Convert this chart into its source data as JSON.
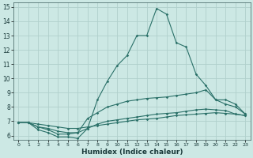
{
  "xlabel": "Humidex (Indice chaleur)",
  "bg_color": "#cce8e4",
  "grid_color": "#b0d0cc",
  "line_color": "#2a7068",
  "xlim": [
    -0.5,
    23.5
  ],
  "ylim": [
    5.7,
    15.3
  ],
  "yticks": [
    6,
    7,
    8,
    9,
    10,
    11,
    12,
    13,
    14,
    15
  ],
  "xticks": [
    0,
    1,
    2,
    3,
    4,
    5,
    6,
    7,
    8,
    9,
    10,
    11,
    12,
    13,
    14,
    15,
    16,
    17,
    18,
    19,
    20,
    21,
    22,
    23
  ],
  "series": [
    [
      6.9,
      6.9,
      6.4,
      6.2,
      5.9,
      5.9,
      5.8,
      6.5,
      8.5,
      9.8,
      10.9,
      11.6,
      13.0,
      13.0,
      14.9,
      14.5,
      12.5,
      12.2,
      10.3,
      9.5,
      8.5,
      8.2,
      8.0,
      7.5
    ],
    [
      6.9,
      6.9,
      6.6,
      6.4,
      6.1,
      6.1,
      6.2,
      7.2,
      7.6,
      8.0,
      8.2,
      8.4,
      8.5,
      8.6,
      8.65,
      8.7,
      8.8,
      8.9,
      9.0,
      9.2,
      8.5,
      8.5,
      8.2,
      7.5
    ],
    [
      6.9,
      6.9,
      6.6,
      6.5,
      6.3,
      6.2,
      6.2,
      6.5,
      6.8,
      7.0,
      7.1,
      7.2,
      7.3,
      7.4,
      7.5,
      7.55,
      7.6,
      7.7,
      7.8,
      7.85,
      7.8,
      7.75,
      7.5,
      7.4
    ],
    [
      6.9,
      6.9,
      6.8,
      6.7,
      6.6,
      6.5,
      6.5,
      6.6,
      6.7,
      6.8,
      6.9,
      7.0,
      7.1,
      7.15,
      7.2,
      7.3,
      7.4,
      7.45,
      7.5,
      7.55,
      7.6,
      7.55,
      7.5,
      7.4
    ]
  ]
}
